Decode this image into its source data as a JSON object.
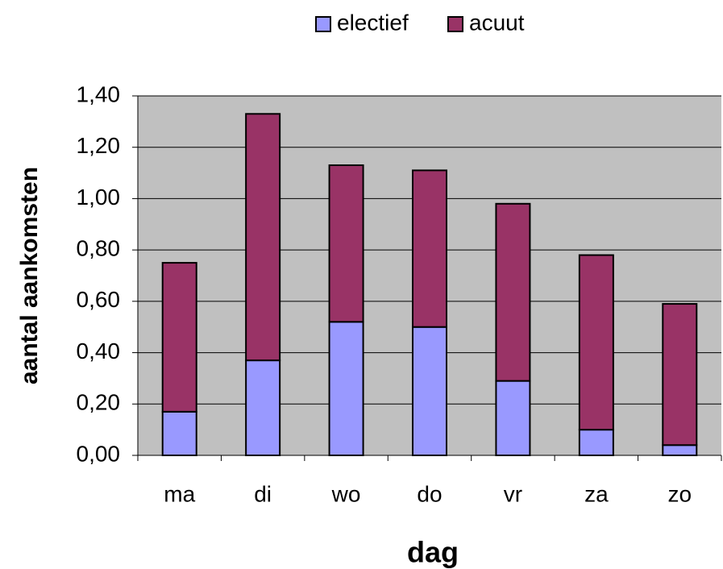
{
  "chart_data": {
    "type": "stacked_bar",
    "categories": [
      "ma",
      "di",
      "wo",
      "do",
      "vr",
      "za",
      "zo"
    ],
    "series": [
      {
        "name": "electief",
        "color": "#9999ff",
        "values": [
          0.17,
          0.37,
          0.52,
          0.5,
          0.29,
          0.1,
          0.04
        ]
      },
      {
        "name": "acuut",
        "color": "#993366",
        "values": [
          0.58,
          0.96,
          0.61,
          0.61,
          0.69,
          0.68,
          0.55
        ]
      }
    ],
    "xlabel": "dag",
    "ylabel": "aantal aankomsten",
    "ylim": [
      0,
      1.4
    ],
    "yticks": [
      {
        "value": 0,
        "label": "0,00"
      },
      {
        "value": 0.2,
        "label": "0,20"
      },
      {
        "value": 0.4,
        "label": "0,40"
      },
      {
        "value": 0.6,
        "label": "0,60"
      },
      {
        "value": 0.8,
        "label": "0,80"
      },
      {
        "value": 1.0,
        "label": "1,00"
      },
      {
        "value": 1.2,
        "label": "1,20"
      },
      {
        "value": 1.4,
        "label": "1,40"
      }
    ],
    "grid": true,
    "legend": "top",
    "plot_background": "#c0c0c0"
  }
}
